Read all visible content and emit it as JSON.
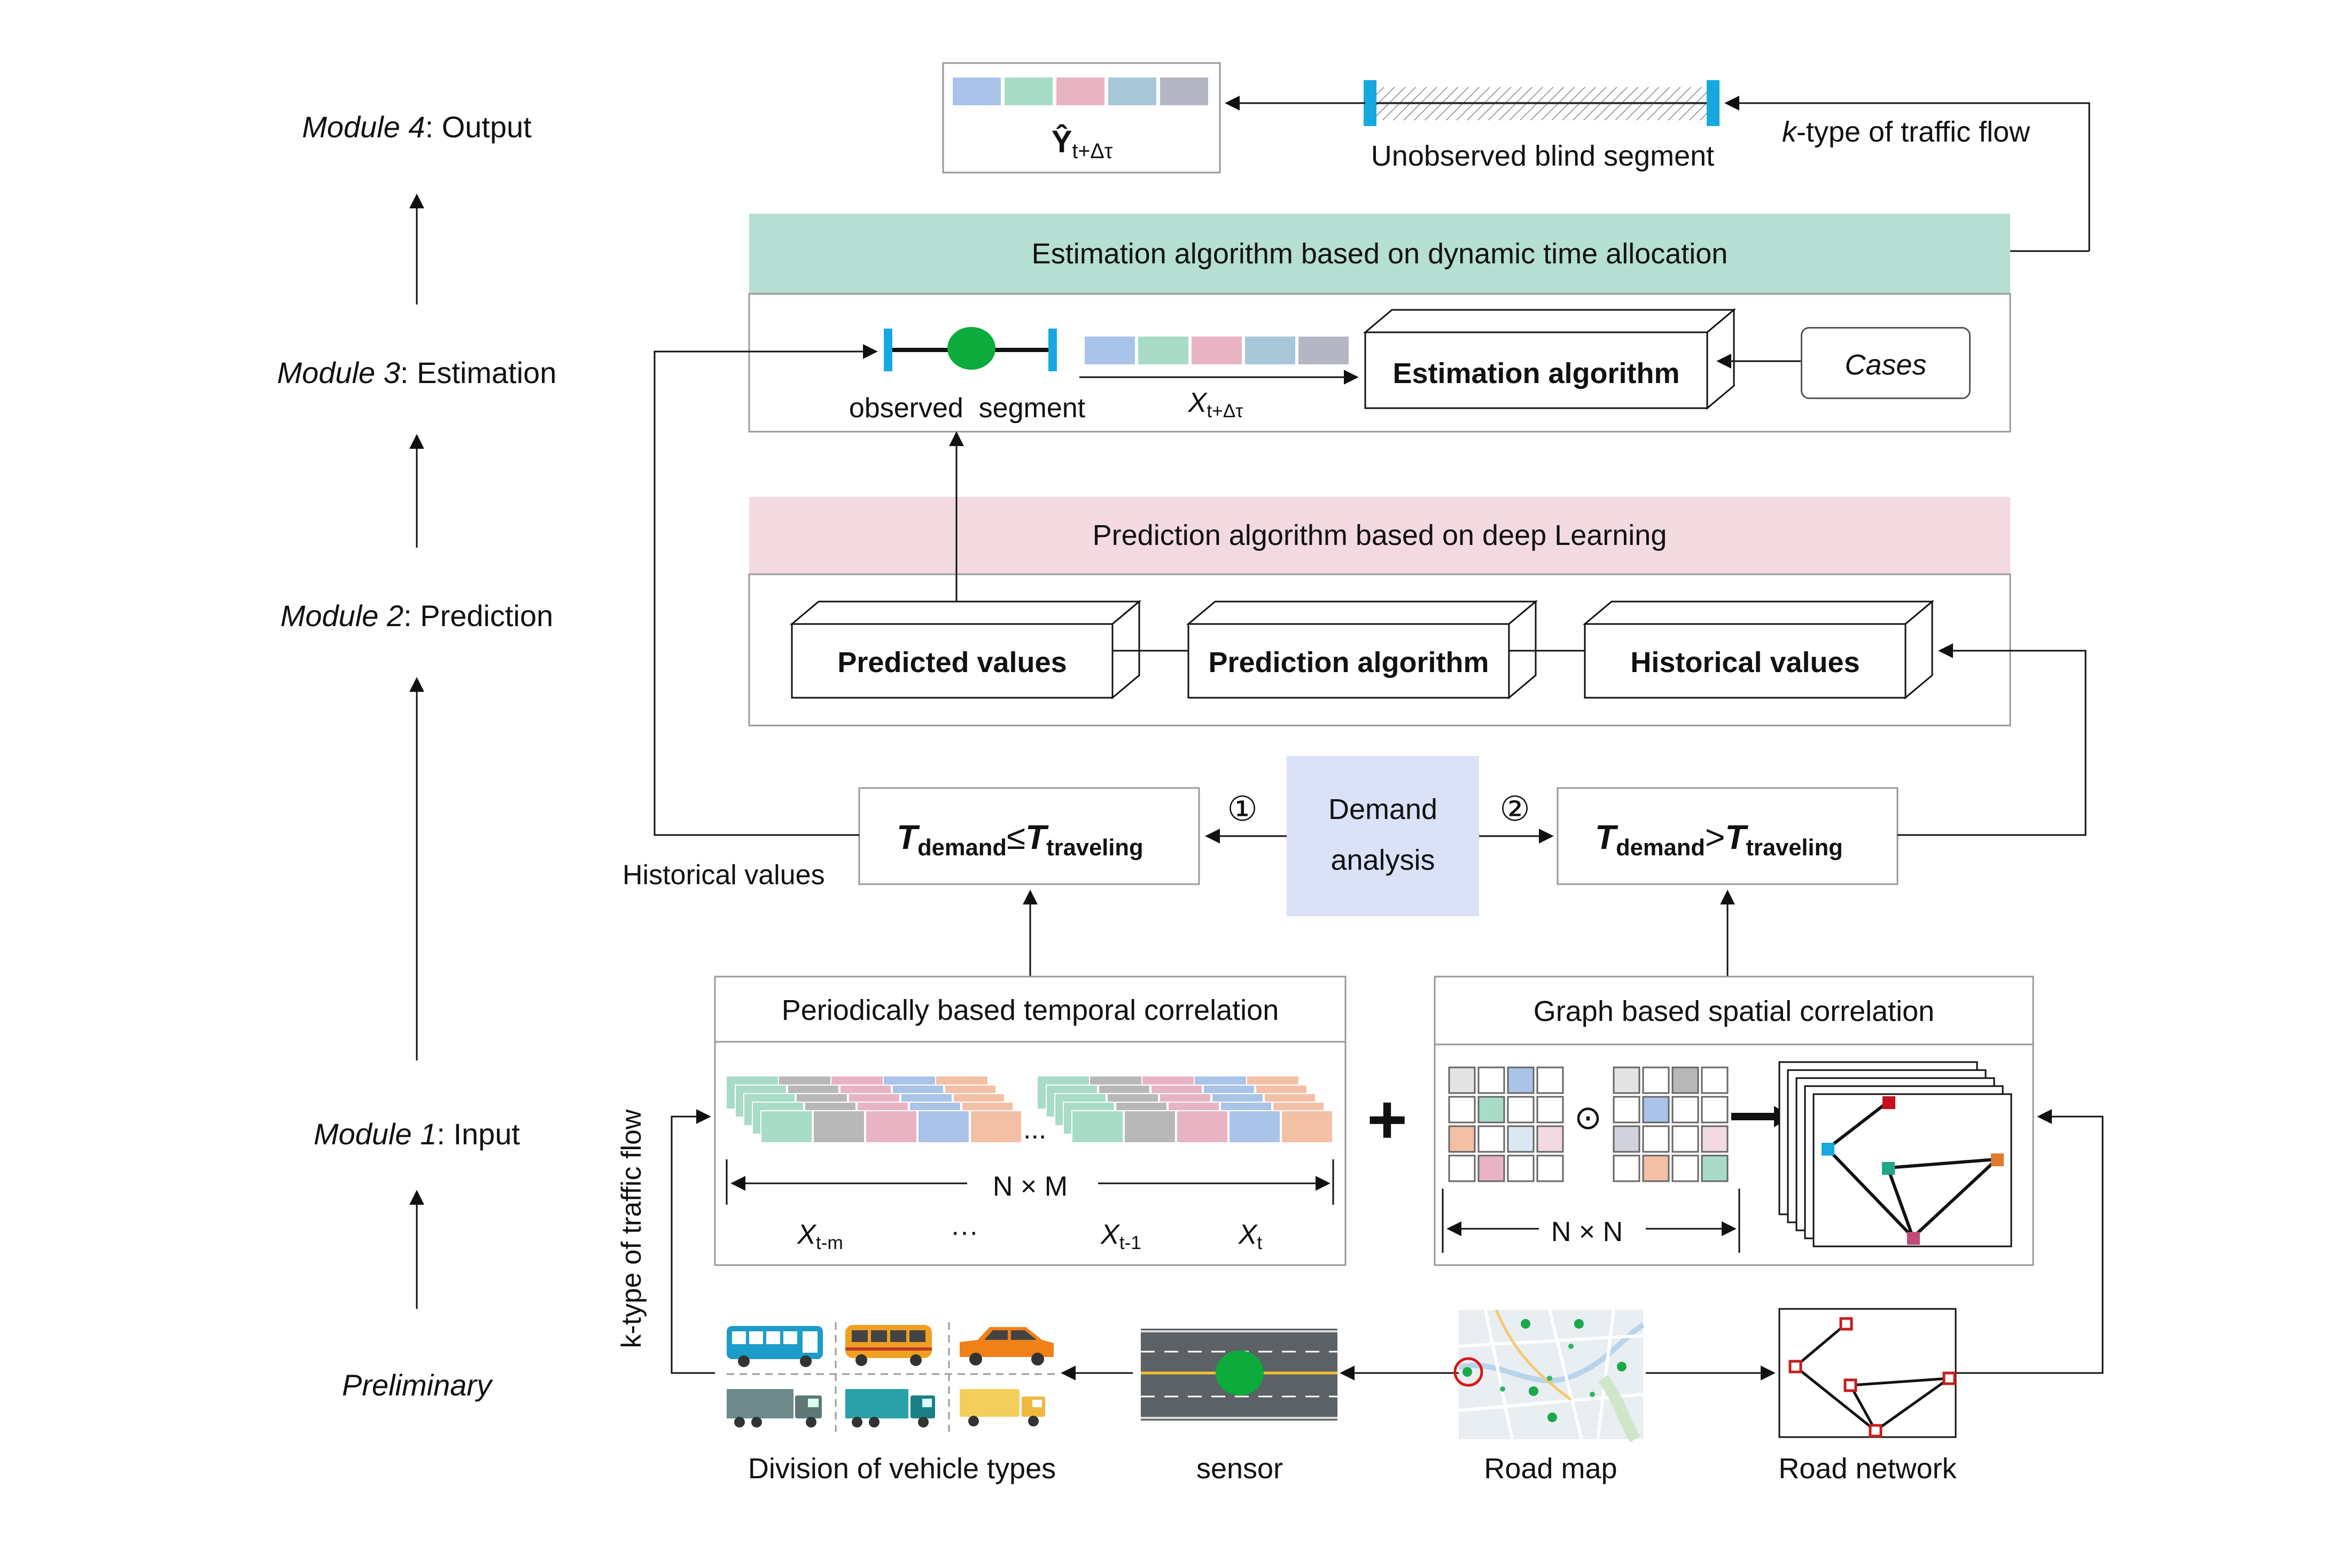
{
  "modules": [
    {
      "name": "Module 4",
      "label": ": Output"
    },
    {
      "name": "Module 3",
      "label": ": Estimation"
    },
    {
      "name": "Module 2",
      "label": ": Prediction"
    },
    {
      "name": "Module 1",
      "label": ": Input"
    },
    {
      "name": "Preliminary",
      "label": ""
    }
  ],
  "output": {
    "y_symbol": "Ŷ",
    "y_subscript": "t+Δτ",
    "blind_segment": "Unobserved blind segment",
    "flow_prefix": "k",
    "flow_label": "-type of traffic flow"
  },
  "estimation": {
    "header": "Estimation algorithm based on dynamic time allocation",
    "observed_segment": "observed  segment",
    "x_symbol": "X",
    "x_subscript": "t+Δτ",
    "algorithm": "Estimation algorithm",
    "cases": "Cases"
  },
  "prediction": {
    "header": "Prediction algorithm based on deep Learning",
    "predicted": "Predicted values",
    "algorithm": "Prediction algorithm",
    "historical": "Historical values"
  },
  "demand": {
    "left_T": "T",
    "left_sub1": "demand",
    "left_op": "≤",
    "left_sub2": "traveling",
    "right_op": ">",
    "center": "Demand",
    "center2": "analysis",
    "circle1": "①",
    "circle2": "②",
    "historical_values": "Historical values"
  },
  "temporal": {
    "header": "Periodically based temporal correlation",
    "nm": "N × M",
    "x_symbol": "X",
    "sub_tm": "t-m",
    "sub_t1": "t-1",
    "sub_t": "t",
    "ellipsis": "···",
    "dots": "..."
  },
  "spatial": {
    "header": "Graph based spatial correlation",
    "nn": "N × N",
    "plus": "+",
    "odot": "⊙"
  },
  "preliminary": {
    "vehicles": "Division of vehicle types",
    "sensor": "sensor",
    "road_map": "Road map",
    "road_network": "Road network",
    "side_label": "k-type of traffic flow"
  },
  "colors": {
    "est_header": "#b5dfd2",
    "pred_header": "#f2dae0",
    "demand_box": "#dbe1f7",
    "cell_blue": "#a9c4e8",
    "cell_green": "#a8dcc6",
    "cell_pink": "#e8b4c4",
    "cell_teal": "#a8c8da",
    "cell_gray": "#b4b6c4",
    "sensor_green": "#0daa3c",
    "marker_blue": "#18a8e0"
  }
}
